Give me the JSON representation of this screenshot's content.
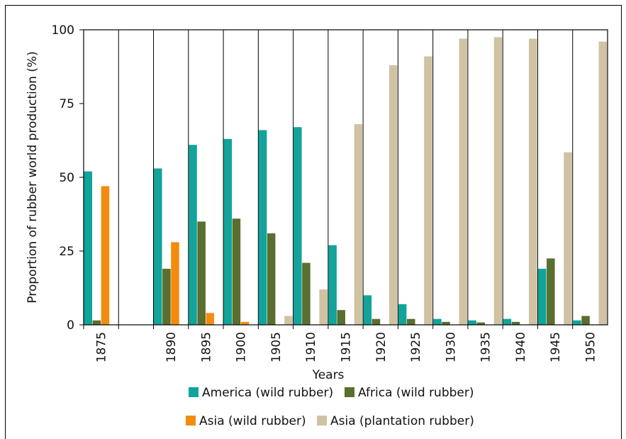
{
  "chart_data": {
    "type": "bar",
    "ylabel": "Proportion of rubber world production (%)",
    "xlabel": "Years",
    "ylim": [
      0,
      100
    ],
    "yticks": [
      0,
      25,
      50,
      75,
      100
    ],
    "grid": "vertical separators between years",
    "legend_position": "bottom",
    "categories": [
      "1875",
      "",
      "1890",
      "1895",
      "1900",
      "1905",
      "1910",
      "1915",
      "1920",
      "1925",
      "1930",
      "1935",
      "1940",
      "1945",
      "1950"
    ],
    "series": [
      {
        "name": "America (wild rubber)",
        "color": "#12a39a",
        "values": [
          52,
          0,
          53,
          61,
          63,
          66,
          67,
          27,
          10,
          7,
          2,
          1.5,
          2,
          19,
          1.5
        ]
      },
      {
        "name": "Africa (wild rubber)",
        "color": "#5a6e2f",
        "values": [
          1.5,
          0,
          19,
          35,
          36,
          31,
          21,
          5,
          2,
          2,
          1,
          0.8,
          1,
          22.5,
          3
        ]
      },
      {
        "name": "Asia (wild rubber)",
        "color": "#f28c0f",
        "values": [
          47,
          0,
          28,
          4,
          1,
          0,
          0,
          0,
          0,
          0,
          0,
          0,
          0,
          0,
          0
        ]
      },
      {
        "name": "Asia (plantation rubber)",
        "color": "#cfc3a3",
        "values": [
          0,
          0,
          0,
          0,
          0,
          3,
          12,
          68,
          88,
          91,
          97,
          97.5,
          97,
          58.5,
          96
        ]
      }
    ]
  }
}
